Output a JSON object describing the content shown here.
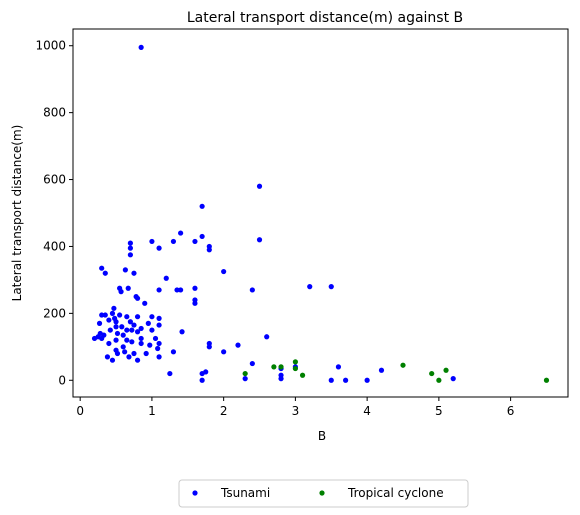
{
  "chart_data": {
    "type": "scatter",
    "title": "Lateral transport distance(m) against B",
    "xlabel": "B",
    "ylabel": "Lateral transport distance(m)",
    "xlim": [
      -0.1,
      6.8
    ],
    "ylim": [
      -50,
      1050
    ],
    "xticks": [
      0,
      1,
      2,
      3,
      4,
      5,
      6
    ],
    "yticks": [
      0,
      200,
      400,
      600,
      800,
      1000
    ],
    "grid": false,
    "legend": "bottom-center",
    "series": [
      {
        "name": "Tsunami",
        "color": "#0000ff",
        "points": [
          [
            0.85,
            995
          ],
          [
            0.2,
            125
          ],
          [
            0.25,
            130
          ],
          [
            0.28,
            140
          ],
          [
            0.3,
            125
          ],
          [
            0.27,
            170
          ],
          [
            0.3,
            335
          ],
          [
            0.35,
            320
          ],
          [
            0.3,
            195
          ],
          [
            0.35,
            195
          ],
          [
            0.33,
            135
          ],
          [
            0.38,
            70
          ],
          [
            0.4,
            110
          ],
          [
            0.4,
            180
          ],
          [
            0.42,
            150
          ],
          [
            0.45,
            200
          ],
          [
            0.45,
            60
          ],
          [
            0.47,
            215
          ],
          [
            0.48,
            185
          ],
          [
            0.5,
            175
          ],
          [
            0.5,
            160
          ],
          [
            0.52,
            140
          ],
          [
            0.5,
            120
          ],
          [
            0.5,
            90
          ],
          [
            0.52,
            80
          ],
          [
            0.55,
            195
          ],
          [
            0.55,
            275
          ],
          [
            0.57,
            265
          ],
          [
            0.58,
            160
          ],
          [
            0.6,
            135
          ],
          [
            0.6,
            100
          ],
          [
            0.62,
            85
          ],
          [
            0.63,
            330
          ],
          [
            0.65,
            190
          ],
          [
            0.65,
            150
          ],
          [
            0.65,
            120
          ],
          [
            0.67,
            275
          ],
          [
            0.68,
            70
          ],
          [
            0.7,
            175
          ],
          [
            0.7,
            410
          ],
          [
            0.7,
            395
          ],
          [
            0.7,
            375
          ],
          [
            0.72,
            150
          ],
          [
            0.72,
            115
          ],
          [
            0.75,
            165
          ],
          [
            0.75,
            80
          ],
          [
            0.75,
            320
          ],
          [
            0.78,
            250
          ],
          [
            0.8,
            245
          ],
          [
            0.8,
            190
          ],
          [
            0.8,
            145
          ],
          [
            0.8,
            60
          ],
          [
            0.85,
            155
          ],
          [
            0.85,
            125
          ],
          [
            0.85,
            110
          ],
          [
            0.9,
            230
          ],
          [
            0.92,
            80
          ],
          [
            0.95,
            170
          ],
          [
            0.97,
            105
          ],
          [
            1.0,
            415
          ],
          [
            1.0,
            190
          ],
          [
            1.0,
            150
          ],
          [
            1.05,
            125
          ],
          [
            1.08,
            95
          ],
          [
            1.1,
            395
          ],
          [
            1.1,
            270
          ],
          [
            1.1,
            185
          ],
          [
            1.1,
            165
          ],
          [
            1.1,
            110
          ],
          [
            1.1,
            70
          ],
          [
            1.2,
            305
          ],
          [
            1.25,
            20
          ],
          [
            1.3,
            415
          ],
          [
            1.3,
            85
          ],
          [
            1.35,
            270
          ],
          [
            1.4,
            440
          ],
          [
            1.4,
            270
          ],
          [
            1.42,
            145
          ],
          [
            1.6,
            415
          ],
          [
            1.6,
            275
          ],
          [
            1.6,
            240
          ],
          [
            1.6,
            230
          ],
          [
            1.7,
            520
          ],
          [
            1.7,
            430
          ],
          [
            1.7,
            20
          ],
          [
            1.75,
            25
          ],
          [
            1.7,
            0
          ],
          [
            1.8,
            400
          ],
          [
            1.8,
            390
          ],
          [
            1.8,
            110
          ],
          [
            1.8,
            100
          ],
          [
            2.0,
            325
          ],
          [
            2.0,
            85
          ],
          [
            2.2,
            105
          ],
          [
            2.3,
            5
          ],
          [
            2.4,
            270
          ],
          [
            2.4,
            50
          ],
          [
            2.5,
            580
          ],
          [
            2.5,
            420
          ],
          [
            2.6,
            130
          ],
          [
            2.8,
            5
          ],
          [
            2.8,
            35
          ],
          [
            2.8,
            15
          ],
          [
            3.0,
            40
          ],
          [
            3.2,
            280
          ],
          [
            3.5,
            280
          ],
          [
            3.5,
            0
          ],
          [
            3.6,
            40
          ],
          [
            3.7,
            0
          ],
          [
            4.0,
            0
          ],
          [
            4.2,
            30
          ],
          [
            5.2,
            5
          ]
        ]
      },
      {
        "name": "Tropical cyclone",
        "color": "#008000",
        "points": [
          [
            2.3,
            20
          ],
          [
            2.7,
            40
          ],
          [
            2.8,
            40
          ],
          [
            3.0,
            55
          ],
          [
            3.0,
            35
          ],
          [
            3.1,
            15
          ],
          [
            4.5,
            45
          ],
          [
            4.9,
            20
          ],
          [
            5.0,
            0
          ],
          [
            5.1,
            30
          ],
          [
            6.5,
            0
          ]
        ]
      }
    ]
  }
}
